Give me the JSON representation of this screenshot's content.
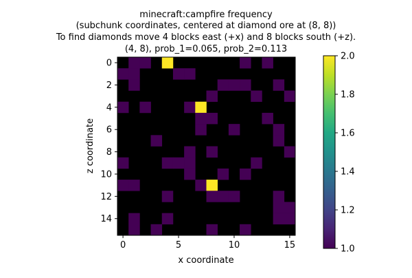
{
  "chart_data": {
    "type": "heatmap",
    "title_lines": [
      "minecraft:campfire frequency",
      "(subchunk coordinates, centered at diamond ore at (8, 8))",
      "To find diamonds move 4 blocks east (+x) and 8 blocks south (+z).",
      "(4, 8), prob_1=0.065, prob_2=0.113"
    ],
    "xlabel": "x coordinate",
    "ylabel": "z coordinate",
    "x_range": [
      0,
      15
    ],
    "z_range": [
      0,
      15
    ],
    "x_ticks": [
      0,
      5,
      10,
      15
    ],
    "z_ticks": [
      0,
      2,
      4,
      6,
      8,
      10,
      12,
      14
    ],
    "colorbar": {
      "min": 1.0,
      "max": 2.0,
      "ticks": [
        1.0,
        1.2,
        1.4,
        1.6,
        1.8,
        2.0
      ],
      "tick_labels": [
        "1.0",
        "1.2",
        "1.4",
        "1.6",
        "1.8",
        "2.0"
      ],
      "colormap": "viridis"
    },
    "background_color": "#000000",
    "cells": [
      {
        "x": 1,
        "z": 0,
        "v": 1
      },
      {
        "x": 2,
        "z": 0,
        "v": 1
      },
      {
        "x": 4,
        "z": 0,
        "v": 2
      },
      {
        "x": 11,
        "z": 0,
        "v": 1
      },
      {
        "x": 13,
        "z": 0,
        "v": 1
      },
      {
        "x": 0,
        "z": 1,
        "v": 1
      },
      {
        "x": 1,
        "z": 1,
        "v": 1
      },
      {
        "x": 5,
        "z": 1,
        "v": 1
      },
      {
        "x": 6,
        "z": 1,
        "v": 1
      },
      {
        "x": 1,
        "z": 2,
        "v": 1
      },
      {
        "x": 9,
        "z": 2,
        "v": 1
      },
      {
        "x": 10,
        "z": 2,
        "v": 1
      },
      {
        "x": 11,
        "z": 2,
        "v": 1
      },
      {
        "x": 14,
        "z": 2,
        "v": 1
      },
      {
        "x": 8,
        "z": 3,
        "v": 1
      },
      {
        "x": 12,
        "z": 3,
        "v": 1
      },
      {
        "x": 15,
        "z": 3,
        "v": 1
      },
      {
        "x": 0,
        "z": 4,
        "v": 1
      },
      {
        "x": 2,
        "z": 4,
        "v": 1
      },
      {
        "x": 6,
        "z": 4,
        "v": 1
      },
      {
        "x": 7,
        "z": 4,
        "v": 2
      },
      {
        "x": 7,
        "z": 5,
        "v": 1
      },
      {
        "x": 8,
        "z": 5,
        "v": 1
      },
      {
        "x": 13,
        "z": 5,
        "v": 1
      },
      {
        "x": 7,
        "z": 6,
        "v": 1
      },
      {
        "x": 10,
        "z": 6,
        "v": 1
      },
      {
        "x": 14,
        "z": 6,
        "v": 1
      },
      {
        "x": 3,
        "z": 7,
        "v": 1
      },
      {
        "x": 14,
        "z": 7,
        "v": 1
      },
      {
        "x": 6,
        "z": 8,
        "v": 1
      },
      {
        "x": 8,
        "z": 8,
        "v": 1
      },
      {
        "x": 15,
        "z": 8,
        "v": 1
      },
      {
        "x": 0,
        "z": 9,
        "v": 1
      },
      {
        "x": 4,
        "z": 9,
        "v": 1
      },
      {
        "x": 5,
        "z": 9,
        "v": 1
      },
      {
        "x": 6,
        "z": 9,
        "v": 1
      },
      {
        "x": 12,
        "z": 9,
        "v": 1
      },
      {
        "x": 6,
        "z": 10,
        "v": 1
      },
      {
        "x": 9,
        "z": 10,
        "v": 1
      },
      {
        "x": 11,
        "z": 10,
        "v": 1
      },
      {
        "x": 0,
        "z": 11,
        "v": 1
      },
      {
        "x": 1,
        "z": 11,
        "v": 1
      },
      {
        "x": 7,
        "z": 11,
        "v": 1
      },
      {
        "x": 8,
        "z": 11,
        "v": 2
      },
      {
        "x": 4,
        "z": 12,
        "v": 1
      },
      {
        "x": 8,
        "z": 12,
        "v": 1
      },
      {
        "x": 9,
        "z": 12,
        "v": 1
      },
      {
        "x": 10,
        "z": 12,
        "v": 1
      },
      {
        "x": 14,
        "z": 12,
        "v": 1
      },
      {
        "x": 14,
        "z": 13,
        "v": 1
      },
      {
        "x": 15,
        "z": 13,
        "v": 1
      },
      {
        "x": 1,
        "z": 14,
        "v": 1
      },
      {
        "x": 4,
        "z": 14,
        "v": 1
      },
      {
        "x": 14,
        "z": 14,
        "v": 1
      },
      {
        "x": 15,
        "z": 14,
        "v": 1
      },
      {
        "x": 1,
        "z": 15,
        "v": 1
      },
      {
        "x": 3,
        "z": 15,
        "v": 1
      },
      {
        "x": 8,
        "z": 15,
        "v": 1
      },
      {
        "x": 11,
        "z": 15,
        "v": 1
      }
    ]
  }
}
